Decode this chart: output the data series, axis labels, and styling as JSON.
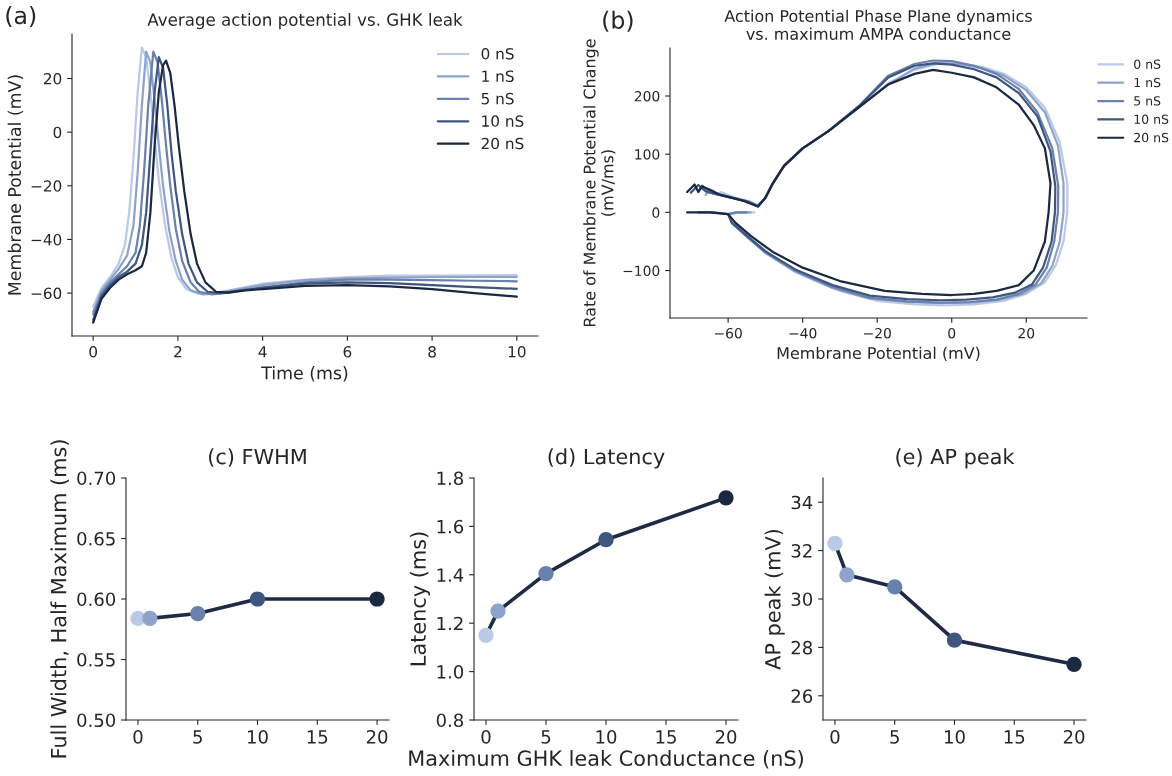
{
  "chart_data": [
    {
      "type": "line",
      "title": "Average action potential vs. GHK leak",
      "xlabel": "Time (ms)",
      "ylabel": "Membrane Potential (mV)",
      "annotations": [
        "(a)"
      ],
      "xlim": [
        -0.5,
        10.5
      ],
      "ylim": [
        -76,
        36.6
      ],
      "xticks": [
        0,
        2,
        4,
        6,
        8,
        10
      ],
      "yticks": [
        {
          "value": -60,
          "label": "−60"
        },
        {
          "value": -40,
          "label": "−40"
        },
        {
          "value": -20,
          "label": "−20"
        },
        0,
        20
      ],
      "legend": "top right",
      "line_style": "solid",
      "series": [
        {
          "name": "0 nS",
          "color": "#b9c9e6",
          "x": [
            0,
            0.2,
            0.4,
            0.6,
            0.75,
            0.85,
            0.95,
            1.05,
            1.15,
            1.25,
            1.35,
            1.45,
            1.55,
            1.7,
            1.85,
            2.0,
            2.2,
            2.5,
            2.8,
            3.2,
            4,
            5,
            6,
            7,
            8,
            9,
            10
          ],
          "values": [
            -65,
            -58,
            -54,
            -49,
            -42,
            -30,
            -10,
            15,
            31.5,
            28,
            15,
            -2,
            -18,
            -35,
            -47,
            -54,
            -58.5,
            -60.3,
            -60,
            -59,
            -56.5,
            -55,
            -54,
            -53.5,
            -53.5,
            -53.4,
            -53.3
          ]
        },
        {
          "name": "1 nS",
          "color": "#8ea3cc",
          "x": [
            0,
            0.2,
            0.4,
            0.6,
            0.8,
            0.95,
            1.05,
            1.15,
            1.25,
            1.35,
            1.45,
            1.55,
            1.65,
            1.8,
            1.95,
            2.1,
            2.3,
            2.6,
            2.9,
            3.3,
            4,
            5,
            6,
            7,
            8,
            9,
            10
          ],
          "values": [
            -67,
            -59,
            -55,
            -51,
            -46,
            -35,
            -15,
            10,
            30,
            26,
            12,
            -5,
            -20,
            -37,
            -48,
            -55,
            -59,
            -60.5,
            -60,
            -59,
            -57,
            -55.2,
            -54.5,
            -54.2,
            -54,
            -54,
            -54
          ]
        },
        {
          "name": "5 nS",
          "color": "#6a80ad",
          "x": [
            0,
            0.2,
            0.4,
            0.6,
            0.8,
            1.0,
            1.1,
            1.2,
            1.3,
            1.42,
            1.52,
            1.62,
            1.72,
            1.82,
            1.95,
            2.1,
            2.3,
            2.5,
            2.8,
            3.1,
            3.5,
            4,
            5,
            6,
            7,
            8,
            9,
            10
          ],
          "values": [
            -68,
            -60,
            -56,
            -53,
            -50,
            -45,
            -35,
            -15,
            10,
            30,
            26,
            12,
            -5,
            -20,
            -36,
            -48,
            -56,
            -59.5,
            -60.5,
            -60,
            -59,
            -58,
            -56,
            -55,
            -55,
            -55.2,
            -55.4,
            -55.6
          ]
        },
        {
          "name": "10 nS",
          "color": "#3f5680",
          "x": [
            0,
            0.2,
            0.4,
            0.6,
            0.8,
            1.0,
            1.15,
            1.25,
            1.35,
            1.45,
            1.55,
            1.65,
            1.75,
            1.85,
            1.95,
            2.1,
            2.25,
            2.45,
            2.7,
            3.0,
            3.5,
            4,
            5,
            6,
            7,
            8,
            9,
            10
          ],
          "values": [
            -70,
            -61,
            -57,
            -54,
            -52,
            -49,
            -42,
            -30,
            -8,
            15,
            28,
            24,
            10,
            -8,
            -22,
            -38,
            -49,
            -56,
            -59.5,
            -60,
            -59,
            -58,
            -56.5,
            -56,
            -56.3,
            -57,
            -57.8,
            -58.4
          ]
        },
        {
          "name": "20 nS",
          "color": "#1b2842",
          "x": [
            0,
            0.2,
            0.4,
            0.6,
            0.8,
            1.0,
            1.15,
            1.25,
            1.35,
            1.45,
            1.55,
            1.65,
            1.72,
            1.82,
            1.92,
            2.02,
            2.15,
            2.3,
            2.45,
            2.65,
            2.9,
            3.2,
            3.6,
            4,
            5,
            6,
            7,
            8,
            9,
            10
          ],
          "values": [
            -71,
            -62,
            -58,
            -55,
            -53,
            -51.5,
            -50,
            -45,
            -30,
            -5,
            15,
            25,
            26.7,
            22,
            10,
            -5,
            -22,
            -38,
            -49,
            -56,
            -59.5,
            -59.8,
            -59,
            -58.5,
            -57.3,
            -57,
            -57.5,
            -58.5,
            -60,
            -61.3
          ]
        }
      ]
    },
    {
      "type": "line",
      "title": "Action Potential Phase Plane dynamics\nvs. maximum AMPA conductance",
      "xlabel": "Membrane Potential (mV)",
      "ylabel": "Rate of Membrane Potential Change\n(mV/ms)",
      "annotations": [
        "(b)"
      ],
      "xlim": [
        -75.6,
        36.3
      ],
      "ylim": [
        -181.5,
        282.5
      ],
      "xticks": [
        {
          "value": -60,
          "label": "−60"
        },
        {
          "value": -40,
          "label": "−40"
        },
        {
          "value": -20,
          "label": "−20"
        },
        0,
        20
      ],
      "yticks": [
        {
          "value": -100,
          "label": "−100"
        },
        0,
        100,
        200
      ],
      "legend": "right",
      "line_style": "solid",
      "series": [
        {
          "name": "0 nS",
          "color": "#b9c9e6",
          "x": [
            -64,
            -63,
            -62,
            -58,
            -54,
            -52,
            -50,
            -48,
            -45,
            -40,
            -33,
            -25,
            -17,
            -10,
            -4,
            2,
            8,
            14,
            20,
            25,
            29,
            31,
            31,
            30,
            28,
            25,
            20,
            14,
            6,
            -2,
            -10,
            -20,
            -30,
            -40,
            -48,
            -54,
            -58,
            -60,
            -57,
            -53
          ],
          "values": [
            38,
            30,
            35,
            25,
            18,
            12,
            25,
            50,
            80,
            110,
            140,
            180,
            222,
            245,
            255,
            256,
            250,
            238,
            215,
            180,
            120,
            50,
            0,
            -50,
            -90,
            -120,
            -140,
            -152,
            -158,
            -160,
            -158,
            -152,
            -135,
            -108,
            -75,
            -45,
            -20,
            -3,
            0,
            0
          ]
        },
        {
          "name": "1 nS",
          "color": "#8ea3cc",
          "x": [
            -66,
            -65,
            -63,
            -58,
            -54,
            -52,
            -50,
            -48,
            -45,
            -40,
            -33,
            -25,
            -17,
            -10,
            -4,
            2,
            8,
            14,
            20,
            25,
            28.5,
            30,
            30,
            29,
            27,
            24,
            19,
            13,
            5,
            -3,
            -12,
            -22,
            -32,
            -42,
            -50,
            -55,
            -59,
            -60,
            -57,
            -54
          ],
          "values": [
            30,
            40,
            32,
            24,
            18,
            12,
            25,
            50,
            80,
            110,
            140,
            180,
            220,
            247,
            257,
            255,
            248,
            235,
            210,
            172,
            115,
            50,
            0,
            -50,
            -92,
            -122,
            -140,
            -150,
            -155,
            -156,
            -154,
            -148,
            -130,
            -102,
            -70,
            -42,
            -18,
            -3,
            0,
            0
          ]
        },
        {
          "name": "5 nS",
          "color": "#6a80ad",
          "x": [
            -68,
            -67,
            -65,
            -60,
            -55,
            -52,
            -50,
            -48,
            -45,
            -40,
            -33,
            -25,
            -17,
            -10,
            -5,
            0,
            6,
            12,
            18,
            23,
            27,
            28.6,
            28.5,
            27.5,
            25.5,
            22.5,
            18,
            12,
            5,
            -3,
            -12,
            -22,
            -32,
            -42,
            -50,
            -55,
            -59,
            -60,
            -58,
            -55
          ],
          "values": [
            36,
            46,
            34,
            27,
            19,
            11,
            25,
            50,
            80,
            110,
            140,
            182,
            235,
            255,
            261,
            260,
            252,
            238,
            212,
            172,
            110,
            45,
            0,
            -50,
            -95,
            -124,
            -140,
            -150,
            -154,
            -155,
            -153,
            -147,
            -128,
            -100,
            -68,
            -41,
            -18,
            -3,
            0,
            0
          ]
        },
        {
          "name": "10 nS",
          "color": "#3f5680",
          "x": [
            -70,
            -68,
            -66,
            -61,
            -55,
            -52,
            -50,
            -48,
            -45,
            -40,
            -33,
            -25,
            -17,
            -10,
            -5,
            0,
            6,
            12,
            18,
            23,
            26.5,
            27.8,
            27.7,
            26.8,
            24.5,
            21.5,
            17,
            11,
            4,
            -3,
            -12,
            -22,
            -32,
            -42,
            -50,
            -55,
            -59,
            -60,
            -64,
            -68
          ],
          "values": [
            34,
            47,
            36,
            28,
            19,
            10,
            25,
            50,
            80,
            110,
            140,
            182,
            232,
            252,
            256,
            254,
            246,
            232,
            205,
            165,
            105,
            45,
            0,
            -50,
            -95,
            -124,
            -138,
            -146,
            -150,
            -151,
            -149,
            -143,
            -125,
            -98,
            -67,
            -40,
            -18,
            -3,
            0,
            0
          ]
        },
        {
          "name": "20 nS",
          "color": "#1b2842",
          "x": [
            -71,
            -69,
            -68,
            -67,
            -62,
            -56,
            -52,
            -50,
            -48,
            -45,
            -40,
            -33,
            -25,
            -17,
            -10,
            -5,
            0,
            6,
            12,
            18,
            22,
            25,
            26.5,
            26,
            25,
            22,
            18,
            12,
            6,
            0,
            -8,
            -18,
            -30,
            -40,
            -48,
            -54,
            -58,
            -60,
            -65,
            -71
          ],
          "values": [
            35,
            48,
            35,
            45,
            30,
            20,
            10,
            25,
            50,
            80,
            110,
            140,
            180,
            220,
            238,
            245,
            240,
            232,
            215,
            185,
            150,
            110,
            50,
            0,
            -50,
            -100,
            -125,
            -135,
            -140,
            -142,
            -140,
            -135,
            -118,
            -95,
            -68,
            -40,
            -18,
            -3,
            0,
            0
          ]
        }
      ]
    },
    {
      "type": "line",
      "title": "(c) FWHM",
      "ylabel": "Full Width, Half Maximum (ms)",
      "x": [
        0,
        1,
        5,
        10,
        20
      ],
      "xlim": [
        -1,
        21
      ],
      "ylim": [
        0.5,
        0.7
      ],
      "xticks": [
        0,
        5,
        10,
        15,
        20
      ],
      "yticks": [
        {
          "value": 0.5,
          "label": "0.50"
        },
        0.55,
        {
          "value": 0.6,
          "label": "0.60"
        },
        0.65,
        {
          "value": 0.7,
          "label": "0.70"
        }
      ],
      "marker": "circle",
      "line_style": "solid",
      "series": [
        {
          "color": "#1f2a44",
          "colors": [
            "#b9c9e6",
            "#8ea3cc",
            "#6a80ad",
            "#3f5680",
            "#1b2842"
          ],
          "values": [
            0.584,
            0.584,
            0.588,
            0.6,
            0.6
          ]
        }
      ]
    },
    {
      "type": "line",
      "title": "(d) Latency",
      "xlabel": "Maximum GHK leak Conductance (nS)",
      "ylabel": "Latency (ms)",
      "x": [
        0,
        1,
        5,
        10,
        20
      ],
      "xlim": [
        -1,
        21
      ],
      "ylim": [
        0.8,
        1.8
      ],
      "xticks": [
        0,
        5,
        10,
        15,
        20
      ],
      "yticks": [
        0.8,
        {
          "value": 1.0,
          "label": "1.0"
        },
        1.2,
        1.4,
        1.6,
        1.8
      ],
      "marker": "circle",
      "line_style": "solid",
      "series": [
        {
          "color": "#1f2a44",
          "colors": [
            "#b9c9e6",
            "#8ea3cc",
            "#6a80ad",
            "#3f5680",
            "#1b2842"
          ],
          "values": [
            1.15,
            1.25,
            1.405,
            1.545,
            1.718
          ]
        }
      ]
    },
    {
      "type": "line",
      "title": "(e) AP peak",
      "ylabel": "AP peak (mV)",
      "x": [
        0,
        1,
        5,
        10,
        20
      ],
      "xlim": [
        -1,
        21
      ],
      "ylim": [
        25,
        35
      ],
      "xticks": [
        0,
        5,
        10,
        15,
        20
      ],
      "yticks": [
        26,
        28,
        30,
        32,
        34
      ],
      "marker": "circle",
      "line_style": "solid",
      "series": [
        {
          "color": "#1f2a44",
          "colors": [
            "#b9c9e6",
            "#8ea3cc",
            "#6a80ad",
            "#3f5680",
            "#1b2842"
          ],
          "values": [
            32.3,
            31.0,
            30.5,
            28.3,
            27.3
          ]
        }
      ]
    }
  ]
}
